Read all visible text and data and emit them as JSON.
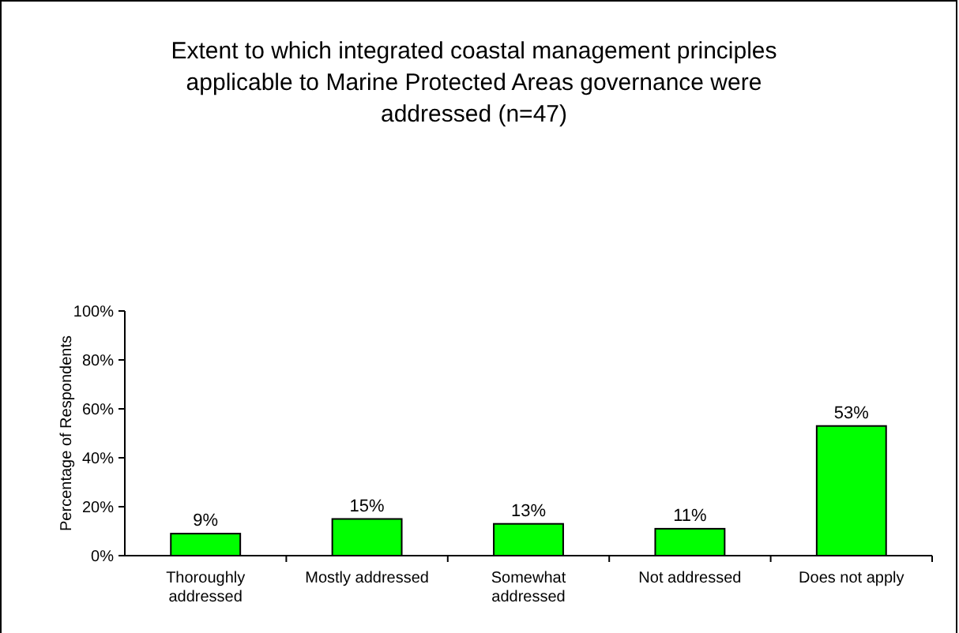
{
  "chart_data": {
    "type": "bar",
    "title": "Extent to which integrated coastal management principles applicable to Marine Protected Areas governance were addressed (n=47)",
    "ylabel": "Percentage of Respondents",
    "categories": [
      "Thoroughly addressed",
      "Mostly addressed",
      "Somewhat addressed",
      "Not addressed",
      "Does not apply"
    ],
    "values": [
      9,
      15,
      13,
      11,
      53
    ],
    "color": "#00ff00",
    "value_labels": [
      "9%",
      "15%",
      "13%",
      "11%",
      "53%"
    ],
    "ylim": [
      0,
      100
    ],
    "yticks": [
      {
        "value": 0,
        "label": "0%"
      },
      {
        "value": 20,
        "label": "20%"
      },
      {
        "value": 40,
        "label": "40%"
      },
      {
        "value": 60,
        "label": "60%"
      },
      {
        "value": 80,
        "label": "80%"
      },
      {
        "value": 100,
        "label": "100%"
      }
    ],
    "grid": false
  }
}
